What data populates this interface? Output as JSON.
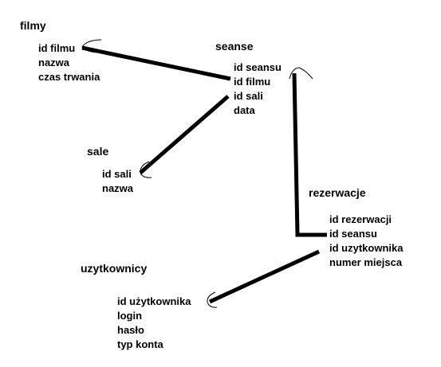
{
  "entities": {
    "filmy": {
      "title": "filmy",
      "fields": [
        "id filmu",
        "nazwa",
        "czas trwania"
      ]
    },
    "seanse": {
      "title": "seanse",
      "fields": [
        "id seansu",
        "id filmu",
        "id sali",
        "data"
      ]
    },
    "sale": {
      "title": "sale",
      "fields": [
        "id sali",
        "nazwa"
      ]
    },
    "rezerwacje": {
      "title": "rezerwacje",
      "fields": [
        "id rezerwacji",
        "id seansu",
        "id uzytkownika",
        "numer miejsca"
      ]
    },
    "uzytkownicy": {
      "title": "uzytkownicy",
      "fields": [
        "id użytkownika",
        "login",
        "hasło",
        "typ konta"
      ]
    }
  },
  "relations": [
    {
      "from": "seanse.id filmu",
      "to": "filmy.id filmu"
    },
    {
      "from": "seanse.id sali",
      "to": "sale.id sali"
    },
    {
      "from": "rezerwacje.id seansu",
      "to": "seanse.id seansu"
    },
    {
      "from": "rezerwacje.id uzytkownika",
      "to": "uzytkownicy.id użytkownika"
    }
  ],
  "colors": {
    "background": "#ffffff",
    "ink": "#000000"
  }
}
